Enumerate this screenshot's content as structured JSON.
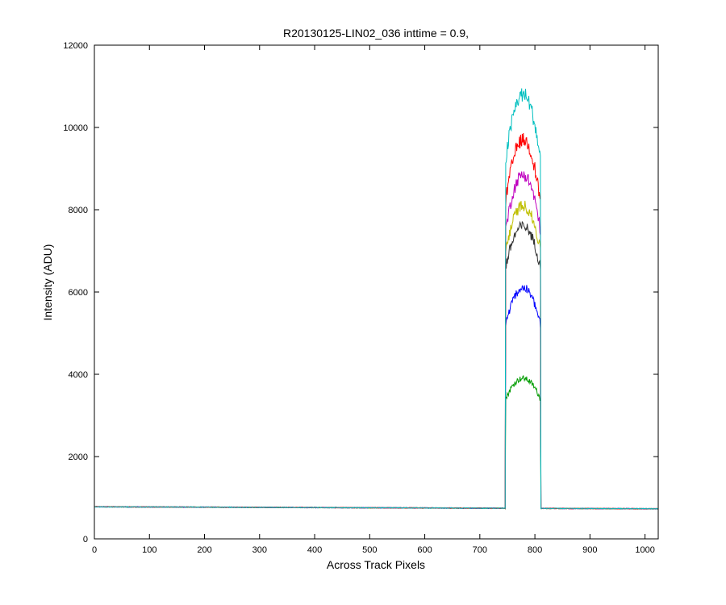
{
  "chart_data": {
    "type": "line",
    "title": "R20130125-LIN02_036 inttime = 0.9,",
    "xlabel": "Across Track Pixels",
    "ylabel": "Intensity (ADU)",
    "xlim": [
      0,
      1024
    ],
    "ylim": [
      0,
      12000
    ],
    "xticks": [
      0,
      100,
      200,
      300,
      400,
      500,
      600,
      700,
      800,
      900,
      1000
    ],
    "yticks": [
      0,
      2000,
      4000,
      6000,
      8000,
      10000,
      12000
    ],
    "xtick_labels": [
      "0",
      "100",
      "200",
      "300",
      "400",
      "500",
      "600",
      "700",
      "800",
      "900",
      "1000"
    ],
    "ytick_labels": [
      "0",
      "2000",
      "4000",
      "6000",
      "8000",
      "10000",
      "12000"
    ],
    "grid": false,
    "legend": "none",
    "baseline": {
      "start": 780,
      "end": 730
    },
    "signal_range": [
      747,
      810
    ],
    "series": [
      {
        "color": "#009c00",
        "edge": 3400,
        "peak": 3900
      },
      {
        "color": "#0000ff",
        "edge": 5200,
        "peak": 6100
      },
      {
        "color": "#333333",
        "edge": 6600,
        "peak": 7600
      },
      {
        "color": "#bfbf00",
        "edge": 7000,
        "peak": 8100
      },
      {
        "color": "#bf00bf",
        "edge": 7500,
        "peak": 8850
      },
      {
        "color": "#ff0000",
        "edge": 8200,
        "peak": 9700
      },
      {
        "color": "#00bfbf",
        "edge": 9200,
        "peak": 10800
      }
    ]
  }
}
